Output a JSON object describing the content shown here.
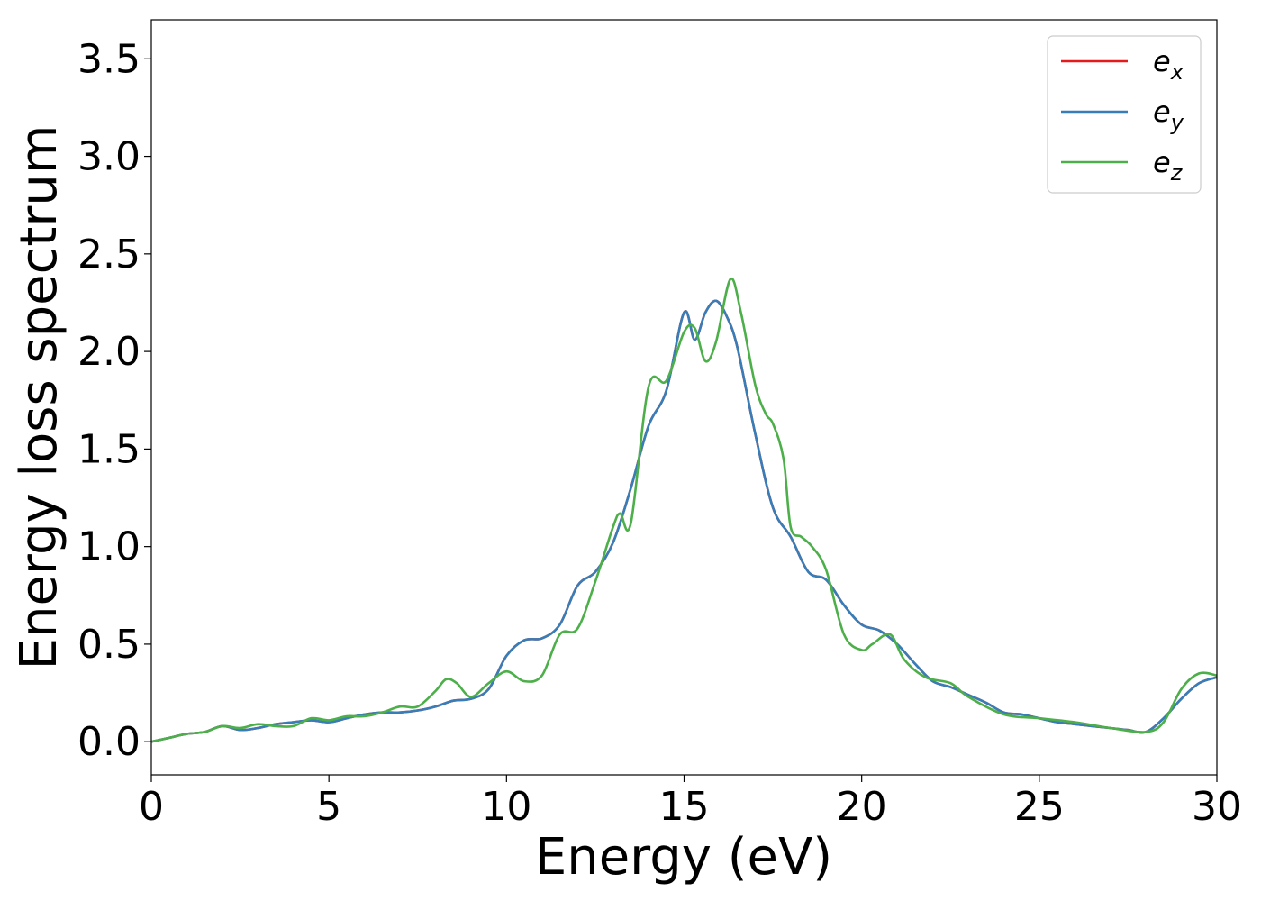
{
  "chart_data": {
    "type": "line",
    "title": "",
    "xlabel": "Energy (eV)",
    "ylabel": "Energy loss spectrum",
    "xlim": [
      0,
      30
    ],
    "ylim": [
      -0.17,
      3.7
    ],
    "xticks": [
      0,
      5,
      10,
      15,
      20,
      25,
      30
    ],
    "yticks": [
      0.0,
      0.5,
      1.0,
      1.5,
      2.0,
      2.5,
      3.0,
      3.5
    ],
    "xtick_labels": [
      "0",
      "5",
      "10",
      "15",
      "20",
      "25",
      "30"
    ],
    "ytick_labels": [
      "0.0",
      "0.5",
      "1.0",
      "1.5",
      "2.0",
      "2.5",
      "3.0",
      "3.5"
    ],
    "grid": false,
    "legend_position": "top-right",
    "series": [
      {
        "name": "e_x",
        "legend_base": "e",
        "legend_sub": "x",
        "color": "#e41a1c",
        "x": [
          0,
          0.5,
          1,
          1.5,
          2,
          2.5,
          3,
          3.5,
          4,
          4.5,
          5,
          5.5,
          6,
          6.5,
          7,
          7.5,
          8,
          8.5,
          9,
          9.5,
          10,
          10.5,
          11,
          11.5,
          12,
          12.5,
          13,
          13.5,
          14,
          14.5,
          15,
          15.3,
          15.6,
          15.9,
          16.2,
          16.5,
          17,
          17.5,
          18,
          18.5,
          19,
          19.5,
          20,
          20.5,
          21,
          21.5,
          22,
          22.5,
          23,
          23.5,
          24,
          24.5,
          25,
          25.5,
          26,
          26.5,
          27,
          27.5,
          28,
          28.5,
          29,
          29.5,
          30
        ],
        "y": [
          0,
          0.02,
          0.04,
          0.05,
          0.08,
          0.06,
          0.07,
          0.09,
          0.1,
          0.11,
          0.1,
          0.12,
          0.14,
          0.15,
          0.15,
          0.16,
          0.18,
          0.21,
          0.22,
          0.27,
          0.44,
          0.52,
          0.53,
          0.6,
          0.8,
          0.87,
          1.02,
          1.3,
          1.62,
          1.8,
          2.2,
          2.06,
          2.2,
          2.26,
          2.18,
          2.02,
          1.58,
          1.2,
          1.05,
          0.87,
          0.83,
          0.7,
          0.6,
          0.57,
          0.5,
          0.4,
          0.31,
          0.28,
          0.24,
          0.2,
          0.15,
          0.14,
          0.12,
          0.1,
          0.09,
          0.08,
          0.07,
          0.06,
          0.05,
          0.12,
          0.22,
          0.3,
          0.33
        ]
      },
      {
        "name": "e_y",
        "legend_base": "e",
        "legend_sub": "y",
        "color": "#377eb8",
        "x": [
          0,
          0.5,
          1,
          1.5,
          2,
          2.5,
          3,
          3.5,
          4,
          4.5,
          5,
          5.5,
          6,
          6.5,
          7,
          7.5,
          8,
          8.5,
          9,
          9.5,
          10,
          10.5,
          11,
          11.5,
          12,
          12.5,
          13,
          13.5,
          14,
          14.5,
          15,
          15.3,
          15.6,
          15.9,
          16.2,
          16.5,
          17,
          17.5,
          18,
          18.5,
          19,
          19.5,
          20,
          20.5,
          21,
          21.5,
          22,
          22.5,
          23,
          23.5,
          24,
          24.5,
          25,
          25.5,
          26,
          26.5,
          27,
          27.5,
          28,
          28.5,
          29,
          29.5,
          30
        ],
        "y": [
          0,
          0.02,
          0.04,
          0.05,
          0.08,
          0.06,
          0.07,
          0.09,
          0.1,
          0.11,
          0.1,
          0.12,
          0.14,
          0.15,
          0.15,
          0.16,
          0.18,
          0.21,
          0.22,
          0.27,
          0.44,
          0.52,
          0.53,
          0.6,
          0.8,
          0.87,
          1.02,
          1.3,
          1.62,
          1.8,
          2.2,
          2.06,
          2.2,
          2.26,
          2.18,
          2.02,
          1.58,
          1.2,
          1.05,
          0.87,
          0.83,
          0.7,
          0.6,
          0.57,
          0.5,
          0.4,
          0.31,
          0.28,
          0.24,
          0.2,
          0.15,
          0.14,
          0.12,
          0.1,
          0.09,
          0.08,
          0.07,
          0.06,
          0.05,
          0.12,
          0.22,
          0.3,
          0.33
        ]
      },
      {
        "name": "e_z",
        "legend_base": "e",
        "legend_sub": "z",
        "color": "#4daf4a",
        "x": [
          0,
          0.5,
          1,
          1.5,
          2,
          2.5,
          3,
          3.5,
          4,
          4.5,
          5,
          5.5,
          6,
          6.5,
          7,
          7.5,
          8,
          8.3,
          8.6,
          9,
          9.5,
          10,
          10.5,
          11,
          11.5,
          12,
          12.5,
          13,
          13.2,
          13.5,
          14,
          14.5,
          15,
          15.3,
          15.6,
          15.9,
          16.3,
          16.6,
          17,
          17.3,
          17.5,
          17.8,
          18,
          18.3,
          18.6,
          19,
          19.5,
          20,
          20.3,
          20.8,
          21.2,
          21.8,
          22.5,
          23,
          24,
          25,
          26,
          27,
          28,
          28.5,
          29,
          29.5,
          30
        ],
        "y": [
          0,
          0.02,
          0.04,
          0.05,
          0.08,
          0.07,
          0.09,
          0.08,
          0.08,
          0.12,
          0.11,
          0.13,
          0.13,
          0.15,
          0.18,
          0.18,
          0.26,
          0.32,
          0.3,
          0.23,
          0.3,
          0.36,
          0.31,
          0.34,
          0.55,
          0.58,
          0.82,
          1.1,
          1.17,
          1.12,
          1.82,
          1.85,
          2.1,
          2.12,
          1.95,
          2.05,
          2.37,
          2.2,
          1.83,
          1.68,
          1.63,
          1.45,
          1.1,
          1.05,
          1.0,
          0.88,
          0.55,
          0.47,
          0.5,
          0.55,
          0.42,
          0.33,
          0.3,
          0.23,
          0.14,
          0.12,
          0.1,
          0.07,
          0.05,
          0.1,
          0.27,
          0.35,
          0.34
        ]
      }
    ]
  }
}
